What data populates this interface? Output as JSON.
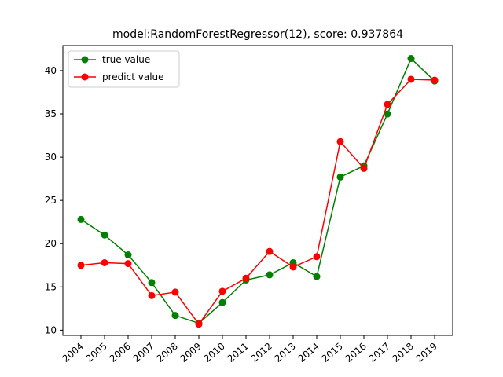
{
  "chart_data": {
    "type": "line",
    "title": "model:RandomForestRegressor(12), score: 0.937864",
    "xlabel": "",
    "ylabel": "",
    "categories": [
      "2004",
      "2005",
      "2006",
      "2007",
      "2008",
      "2009",
      "2010",
      "2011",
      "2012",
      "2013",
      "2014",
      "2015",
      "2016",
      "2017",
      "2018",
      "2019"
    ],
    "yticks": [
      10,
      15,
      20,
      25,
      30,
      35,
      40
    ],
    "ylim": [
      9.4,
      42.9
    ],
    "grid": false,
    "legend_position": "top-left",
    "series": [
      {
        "name": "true value",
        "color": "#008000",
        "marker": "circle",
        "values": [
          22.8,
          21.0,
          18.7,
          15.5,
          11.7,
          10.8,
          13.2,
          15.8,
          16.4,
          17.8,
          16.2,
          27.7,
          29.0,
          35.0,
          41.4,
          38.8
        ]
      },
      {
        "name": "predict value",
        "color": "#ff0000",
        "marker": "circle",
        "values": [
          17.5,
          17.8,
          17.7,
          14.0,
          14.4,
          10.7,
          14.5,
          16.0,
          19.1,
          17.3,
          18.5,
          31.8,
          28.7,
          36.1,
          39.0,
          38.9
        ]
      }
    ]
  }
}
